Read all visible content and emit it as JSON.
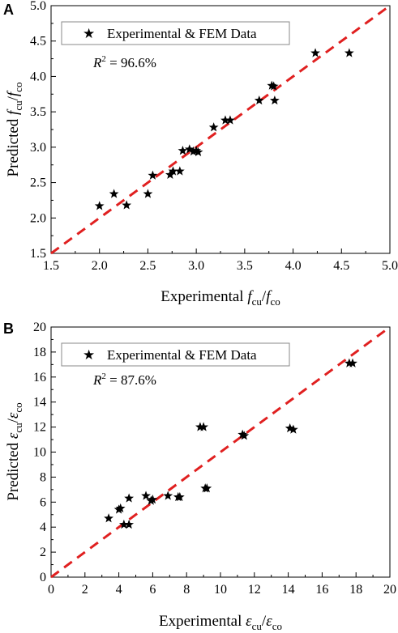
{
  "chart_data": [
    {
      "panel": "A",
      "type": "scatter",
      "legend": "Experimental & FEM Data",
      "r2_label": "R",
      "r2_sup": "2",
      "r2_value": " = 96.6%",
      "xlabel": {
        "prefix": "Experimental ",
        "sym": "f",
        "sub1": "cu",
        "slash": "/",
        "sym2": "f",
        "sub2": "co"
      },
      "ylabel": {
        "prefix": "Predicted ",
        "sym": "f",
        "sub1": "cu",
        "slash": "/",
        "sym2": "f",
        "sub2": "co"
      },
      "xlim": [
        1.5,
        5.0
      ],
      "ylim": [
        1.5,
        5.0
      ],
      "xticks": [
        "1.5",
        "2.0",
        "2.5",
        "3.0",
        "3.5",
        "4.0",
        "4.5",
        "5.0"
      ],
      "yticks": [
        "1.5",
        "2.0",
        "2.5",
        "3.0",
        "3.5",
        "4.0",
        "4.5",
        "5.0"
      ],
      "points": [
        [
          2.0,
          2.17
        ],
        [
          2.15,
          2.34
        ],
        [
          2.28,
          2.18
        ],
        [
          2.5,
          2.34
        ],
        [
          2.55,
          2.6
        ],
        [
          2.73,
          2.61
        ],
        [
          2.76,
          2.66
        ],
        [
          2.83,
          2.66
        ],
        [
          2.86,
          2.95
        ],
        [
          2.93,
          2.97
        ],
        [
          2.97,
          2.94
        ],
        [
          3.0,
          2.95
        ],
        [
          3.02,
          2.93
        ],
        [
          3.18,
          3.28
        ],
        [
          3.3,
          3.38
        ],
        [
          3.35,
          3.38
        ],
        [
          3.65,
          3.66
        ],
        [
          3.78,
          3.87
        ],
        [
          3.8,
          3.86
        ],
        [
          3.81,
          3.66
        ],
        [
          4.23,
          4.33
        ],
        [
          4.58,
          4.33
        ]
      ],
      "line": "y = x",
      "line_color": "#e02020",
      "marker_color": "#000000"
    },
    {
      "panel": "B",
      "type": "scatter",
      "legend": "Experimental & FEM Data",
      "r2_label": "R",
      "r2_sup": "2",
      "r2_value": " = 87.6%",
      "xlabel": {
        "prefix": "Experimental ",
        "sym": "ε",
        "sub1": "cu",
        "slash": "/",
        "sym2": "ε",
        "sub2": "co"
      },
      "ylabel": {
        "prefix": "Predicted ",
        "sym": "ε",
        "sub1": "cu",
        "slash": "/",
        "sym2": "ε",
        "sub2": "co"
      },
      "xlim": [
        0,
        20
      ],
      "ylim": [
        0,
        20
      ],
      "xticks": [
        "0",
        "2",
        "4",
        "6",
        "8",
        "10",
        "12",
        "14",
        "16",
        "18",
        "20"
      ],
      "yticks": [
        "0",
        "2",
        "4",
        "6",
        "8",
        "10",
        "12",
        "14",
        "16",
        "18",
        "20"
      ],
      "points": [
        [
          3.4,
          4.7
        ],
        [
          4.0,
          5.4
        ],
        [
          4.1,
          5.5
        ],
        [
          4.3,
          4.2
        ],
        [
          4.6,
          4.2
        ],
        [
          4.6,
          6.3
        ],
        [
          5.6,
          6.5
        ],
        [
          5.9,
          6.1
        ],
        [
          6.0,
          6.2
        ],
        [
          6.9,
          6.5
        ],
        [
          7.5,
          6.4
        ],
        [
          7.6,
          6.4
        ],
        [
          8.8,
          12.0
        ],
        [
          9.0,
          12.0
        ],
        [
          9.1,
          7.1
        ],
        [
          9.2,
          7.1
        ],
        [
          11.3,
          11.4
        ],
        [
          11.4,
          11.3
        ],
        [
          14.1,
          11.9
        ],
        [
          14.3,
          11.8
        ],
        [
          17.6,
          17.1
        ],
        [
          17.8,
          17.1
        ]
      ],
      "line": "y = x",
      "line_color": "#e02020",
      "marker_color": "#000000"
    }
  ]
}
